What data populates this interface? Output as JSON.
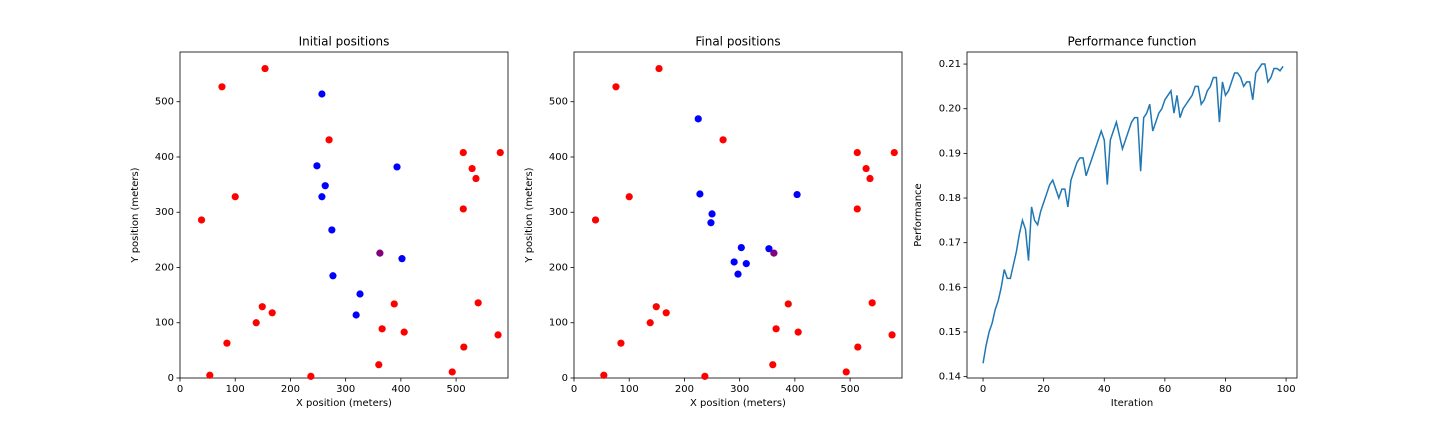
{
  "chart_data": [
    {
      "type": "scatter",
      "title": "Initial positions",
      "xlabel": "X position (meters)",
      "ylabel": "Y position (meters)",
      "xlim": [
        0,
        594
      ],
      "ylim": [
        0,
        590
      ],
      "xticks": [
        0,
        100,
        200,
        300,
        400,
        500
      ],
      "yticks": [
        0,
        100,
        200,
        300,
        400,
        500
      ],
      "series": [
        {
          "color": "#ff0000",
          "x": [
            76,
            154,
            100,
            39,
            270,
            513,
            580,
            529,
            536,
            513,
            149,
            167,
            138,
            85,
            54,
            237,
            388,
            366,
            406,
            360,
            493,
            514,
            540,
            576
          ],
          "values": [
            527,
            560,
            328,
            286,
            431,
            408,
            408,
            379,
            361,
            306,
            129,
            118,
            100,
            63,
            5,
            3,
            134,
            89,
            83,
            24,
            11,
            56,
            136,
            78
          ]
        },
        {
          "color": "#0000ff",
          "x": [
            257,
            248,
            393,
            263,
            257,
            275,
            402,
            277,
            326,
            319
          ],
          "values": [
            514,
            384,
            382,
            348,
            328,
            268,
            216,
            185,
            152,
            114
          ]
        },
        {
          "color": "#800080",
          "x": [
            362
          ],
          "values": [
            226
          ]
        }
      ]
    },
    {
      "type": "scatter",
      "title": "Final positions",
      "xlabel": "X position (meters)",
      "ylabel": "Y position (meters)",
      "xlim": [
        0,
        594
      ],
      "ylim": [
        0,
        590
      ],
      "xticks": [
        0,
        100,
        200,
        300,
        400,
        500
      ],
      "yticks": [
        0,
        100,
        200,
        300,
        400,
        500
      ],
      "series": [
        {
          "color": "#ff0000",
          "x": [
            76,
            154,
            100,
            39,
            270,
            513,
            580,
            529,
            536,
            513,
            149,
            167,
            138,
            85,
            54,
            237,
            388,
            366,
            406,
            360,
            493,
            514,
            540,
            576
          ],
          "values": [
            527,
            560,
            328,
            286,
            431,
            408,
            408,
            379,
            361,
            306,
            129,
            118,
            100,
            63,
            5,
            3,
            134,
            89,
            83,
            24,
            11,
            56,
            136,
            78
          ]
        },
        {
          "color": "#0000ff",
          "x": [
            225,
            228,
            250,
            248,
            303,
            404,
            290,
            312,
            297,
            353
          ],
          "values": [
            469,
            333,
            297,
            281,
            236,
            332,
            210,
            207,
            188,
            234
          ]
        },
        {
          "color": "#800080",
          "x": [
            362
          ],
          "values": [
            226
          ]
        }
      ]
    },
    {
      "type": "line",
      "title": "Performance function",
      "xlabel": "Iteration",
      "ylabel": "Performance",
      "xlim": [
        -5.3,
        103.6
      ],
      "ylim": [
        0.1397,
        0.2127
      ],
      "xticks": [
        0,
        20,
        40,
        60,
        80,
        100
      ],
      "yticks": [
        0.14,
        0.15,
        0.16,
        0.17,
        0.18,
        0.19,
        {
          "value": 0.2,
          "label": "0.20"
        },
        0.21
      ],
      "series": [
        {
          "color": "#1f77b4",
          "x": [
            0,
            1,
            2,
            3,
            4,
            5,
            6,
            7,
            8,
            9,
            10,
            11,
            12,
            13,
            14,
            15,
            16,
            17,
            18,
            19,
            20,
            21,
            22,
            23,
            24,
            25,
            26,
            27,
            28,
            29,
            30,
            31,
            32,
            33,
            34,
            35,
            36,
            37,
            38,
            39,
            40,
            41,
            42,
            43,
            44,
            45,
            46,
            47,
            48,
            49,
            50,
            51,
            52,
            53,
            54,
            55,
            56,
            57,
            58,
            59,
            60,
            61,
            62,
            63,
            64,
            65,
            66,
            67,
            68,
            69,
            70,
            71,
            72,
            73,
            74,
            75,
            76,
            77,
            78,
            79,
            80,
            81,
            82,
            83,
            84,
            85,
            86,
            87,
            88,
            89,
            90,
            91,
            92,
            93,
            94,
            95,
            96,
            97,
            98,
            99
          ],
          "values": [
            0.143,
            0.147,
            0.15,
            0.152,
            0.155,
            0.157,
            0.16,
            0.164,
            0.162,
            0.162,
            0.165,
            0.168,
            0.172,
            0.175,
            0.173,
            0.166,
            0.178,
            0.175,
            0.174,
            0.177,
            0.179,
            0.181,
            0.183,
            0.184,
            0.182,
            0.18,
            0.182,
            0.182,
            0.178,
            0.184,
            0.186,
            0.188,
            0.189,
            0.189,
            0.185,
            0.187,
            0.189,
            0.191,
            0.193,
            0.195,
            0.193,
            0.183,
            0.193,
            0.195,
            0.197,
            0.194,
            0.191,
            0.193,
            0.195,
            0.197,
            0.198,
            0.198,
            0.186,
            0.198,
            0.199,
            0.201,
            0.195,
            0.197,
            0.199,
            0.2,
            0.202,
            0.203,
            0.204,
            0.199,
            0.203,
            0.198,
            0.2,
            0.201,
            0.202,
            0.203,
            0.205,
            0.205,
            0.201,
            0.202,
            0.204,
            0.205,
            0.207,
            0.207,
            0.197,
            0.206,
            0.203,
            0.204,
            0.206,
            0.208,
            0.208,
            0.207,
            0.205,
            0.206,
            0.206,
            0.202,
            0.208,
            0.209,
            0.21,
            0.21,
            0.206,
            0.207,
            0.209,
            0.209,
            0.2085,
            0.2095
          ]
        }
      ]
    }
  ]
}
